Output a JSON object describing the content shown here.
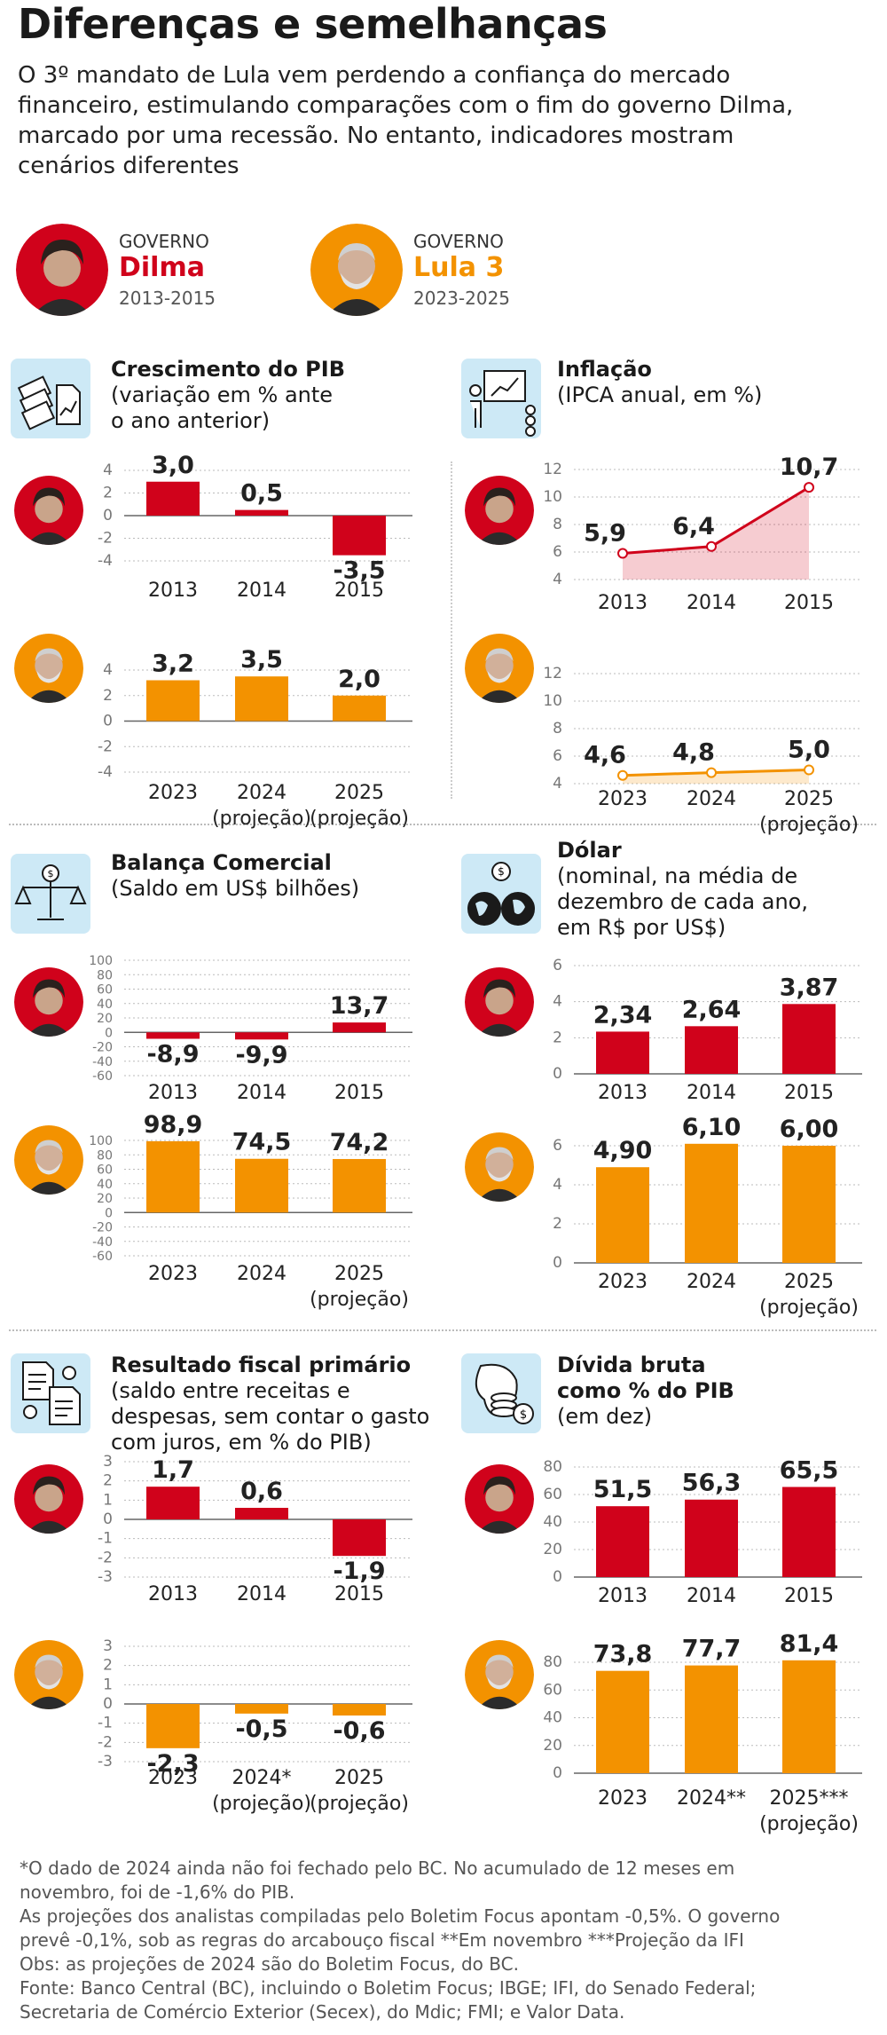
{
  "header": {
    "title": "Diferenças e semelhanças",
    "intro": [
      "O 3º mandato de Lula vem perdendo a confiança do mercado",
      "financeiro, estimulando comparações com o fim do governo Dilma,",
      "marcado por uma recessão. No entanto, indicadores mostram",
      "cenários diferentes"
    ]
  },
  "governments": [
    {
      "label": "GOVERNO",
      "name": "Dilma",
      "years": "2013-2015",
      "color": "#d0021b"
    },
    {
      "label": "GOVERNO",
      "name": "Lula 3",
      "years": "2023-2025",
      "color": "#f39200"
    }
  ],
  "colors": {
    "dilma": "#d0021b",
    "lula": "#f39200",
    "icon_bg": "#cde9f6"
  },
  "sections": {
    "pib": {
      "title": "Crescimento do PIB",
      "subtitle": [
        "(variação em % ante",
        "o ano anterior)"
      ],
      "icon": "money-chart-icon"
    },
    "inflacao": {
      "title": "Inflação",
      "subtitle": [
        "(IPCA anual, em %)"
      ],
      "icon": "presentation-icon"
    },
    "balanca": {
      "title": "Balança Comercial",
      "subtitle": [
        "(Saldo em US$ bilhões)"
      ],
      "icon": "scale-icon"
    },
    "dolar": {
      "title": "Dólar",
      "subtitle": [
        "(nominal, na média de",
        "dezembro de cada ano,",
        "em R$ por US$)"
      ],
      "icon": "globe-dollar-icon"
    },
    "fiscal": {
      "title": "Resultado fiscal primário",
      "subtitle": [
        "(saldo entre receitas e",
        "despesas, sem contar o gasto",
        "com juros, em % do PIB)"
      ],
      "icon": "documents-icon"
    },
    "divida": {
      "title": "Dívida bruta",
      "title2": "como % do PIB",
      "subtitle": [
        "(em dez)"
      ],
      "icon": "coins-map-icon"
    }
  },
  "chart_data": [
    {
      "id": "pib_dilma",
      "type": "bar",
      "title": "Crescimento do PIB",
      "series_name": "Dilma",
      "categories": [
        [
          "2013"
        ],
        [
          "2014"
        ],
        [
          "2015"
        ]
      ],
      "values": [
        3.0,
        0.5,
        -3.5
      ],
      "labels": [
        "3,0",
        "0,5",
        "-3,5"
      ],
      "yticks": [
        "4",
        "2",
        "0",
        "-2",
        "-4"
      ],
      "ylim": [
        -4,
        4
      ],
      "color": "#d0021b"
    },
    {
      "id": "pib_lula",
      "type": "bar",
      "title": "Crescimento do PIB",
      "series_name": "Lula 3",
      "categories": [
        [
          "2023"
        ],
        [
          "2024",
          "(projeção)"
        ],
        [
          "2025",
          "(projeção)"
        ]
      ],
      "values": [
        3.2,
        3.5,
        2.0
      ],
      "labels": [
        "3,2",
        "3,5",
        "2,0"
      ],
      "yticks": [
        "4",
        "2",
        "0",
        "-2",
        "-4"
      ],
      "ylim": [
        -4,
        4
      ],
      "color": "#f39200"
    },
    {
      "id": "inf_dilma",
      "type": "area",
      "title": "Inflação",
      "series_name": "Dilma",
      "categories": [
        [
          "2013"
        ],
        [
          "2014"
        ],
        [
          "2015"
        ]
      ],
      "values": [
        5.9,
        6.4,
        10.7
      ],
      "labels": [
        "5,9",
        "6,4",
        "10,7"
      ],
      "yticks": [
        "12",
        "10",
        "8",
        "6",
        "4"
      ],
      "ylim": [
        4,
        12
      ],
      "color": "#d0021b"
    },
    {
      "id": "inf_lula",
      "type": "area",
      "title": "Inflação",
      "series_name": "Lula 3",
      "categories": [
        [
          "2023"
        ],
        [
          "2024"
        ],
        [
          "2025",
          "(projeção)"
        ]
      ],
      "values": [
        4.6,
        4.8,
        5.0
      ],
      "labels": [
        "4,6",
        "4,8",
        "5,0"
      ],
      "yticks": [
        "12",
        "10",
        "8",
        "6",
        "4"
      ],
      "ylim": [
        4,
        12
      ],
      "color": "#f39200"
    },
    {
      "id": "bal_dilma",
      "type": "bar",
      "title": "Balança Comercial",
      "series_name": "Dilma",
      "categories": [
        [
          "2013"
        ],
        [
          "2014"
        ],
        [
          "2015"
        ]
      ],
      "values": [
        -8.9,
        -9.9,
        13.7
      ],
      "labels": [
        "-8,9",
        "-9,9",
        "13,7"
      ],
      "yticks": [
        "100",
        "80",
        "60",
        "40",
        "20",
        "0",
        "-20",
        "-40",
        "-60"
      ],
      "ylim": [
        -60,
        100
      ],
      "color": "#d0021b"
    },
    {
      "id": "bal_lula",
      "type": "bar",
      "title": "Balança Comercial",
      "series_name": "Lula 3",
      "categories": [
        [
          "2023"
        ],
        [
          "2024"
        ],
        [
          "2025",
          "(projeção)"
        ]
      ],
      "values": [
        98.9,
        74.5,
        74.2
      ],
      "labels": [
        "98,9",
        "74,5",
        "74,2"
      ],
      "yticks": [
        "100",
        "80",
        "60",
        "40",
        "20",
        "0",
        "-20",
        "-40",
        "-60"
      ],
      "ylim": [
        -60,
        100
      ],
      "color": "#f39200"
    },
    {
      "id": "dol_dilma",
      "type": "bar",
      "title": "Dólar",
      "series_name": "Dilma",
      "categories": [
        [
          "2013"
        ],
        [
          "2014"
        ],
        [
          "2015"
        ]
      ],
      "values": [
        2.34,
        2.64,
        3.87
      ],
      "labels": [
        "2,34",
        "2,64",
        "3,87"
      ],
      "yticks": [
        "6",
        "4",
        "2",
        "0"
      ],
      "ylim": [
        0,
        6
      ],
      "color": "#d0021b"
    },
    {
      "id": "dol_lula",
      "type": "bar",
      "title": "Dólar",
      "series_name": "Lula 3",
      "categories": [
        [
          "2023"
        ],
        [
          "2024"
        ],
        [
          "2025",
          "(projeção)"
        ]
      ],
      "values": [
        4.9,
        6.1,
        6.0
      ],
      "labels": [
        "4,90",
        "6,10",
        "6,00"
      ],
      "yticks": [
        "6",
        "4",
        "2",
        "0"
      ],
      "ylim": [
        0,
        6
      ],
      "color": "#f39200"
    },
    {
      "id": "fis_dilma",
      "type": "bar",
      "title": "Resultado fiscal primário",
      "series_name": "Dilma",
      "categories": [
        [
          "2013"
        ],
        [
          "2014"
        ],
        [
          "2015"
        ]
      ],
      "values": [
        1.7,
        0.6,
        -1.9
      ],
      "labels": [
        "1,7",
        "0,6",
        "-1,9"
      ],
      "yticks": [
        "3",
        "2",
        "1",
        "0",
        "-1",
        "-2",
        "-3"
      ],
      "ylim": [
        -3,
        3
      ],
      "color": "#d0021b"
    },
    {
      "id": "fis_lula",
      "type": "bar",
      "title": "Resultado fiscal primário",
      "series_name": "Lula 3",
      "categories": [
        [
          "2023"
        ],
        [
          "2024*",
          "(projeção)"
        ],
        [
          "2025",
          "(projeção)"
        ]
      ],
      "values": [
        -2.3,
        -0.5,
        -0.6
      ],
      "labels": [
        "-2,3",
        "-0,5",
        "-0,6"
      ],
      "yticks": [
        "3",
        "2",
        "1",
        "0",
        "-1",
        "-2",
        "-3"
      ],
      "ylim": [
        -3,
        3
      ],
      "color": "#f39200"
    },
    {
      "id": "div_dilma",
      "type": "bar",
      "title": "Dívida bruta como % do PIB",
      "series_name": "Dilma",
      "categories": [
        [
          "2013"
        ],
        [
          "2014"
        ],
        [
          "2015"
        ]
      ],
      "values": [
        51.5,
        56.3,
        65.5
      ],
      "labels": [
        "51,5",
        "56,3",
        "65,5"
      ],
      "yticks": [
        "80",
        "60",
        "40",
        "20",
        "0"
      ],
      "ylim": [
        0,
        80
      ],
      "color": "#d0021b"
    },
    {
      "id": "div_lula",
      "type": "bar",
      "title": "Dívida bruta como % do PIB",
      "series_name": "Lula 3",
      "categories": [
        [
          "2023"
        ],
        [
          "2024**"
        ],
        [
          "2025***",
          "(projeção)"
        ]
      ],
      "values": [
        73.8,
        77.7,
        81.4
      ],
      "labels": [
        "73,8",
        "77,7",
        "81,4"
      ],
      "yticks": [
        "80",
        "60",
        "40",
        "20",
        "0"
      ],
      "ylim": [
        0,
        80
      ],
      "color": "#f39200"
    }
  ],
  "notes": [
    "*O dado de 2024 ainda não foi fechado pelo BC. No acumulado de 12 meses em",
    "novembro,  foi de -1,6% do PIB.",
    "As projeções dos analistas compiladas pelo Boletim Focus apontam -0,5%. O governo",
    "prevê -0,1%, sob as regras do arcabouço fiscal **Em novembro ***Projeção da IFI",
    "Obs: as projeções de 2024 são do Boletim Focus, do BC.",
    "Fonte: Banco Central (BC), incluindo o Boletim Focus; IBGE; IFI, do Senado Federal;",
    "Secretaria de Comércio Exterior (Secex), do Mdic; FMI; e Valor Data."
  ]
}
